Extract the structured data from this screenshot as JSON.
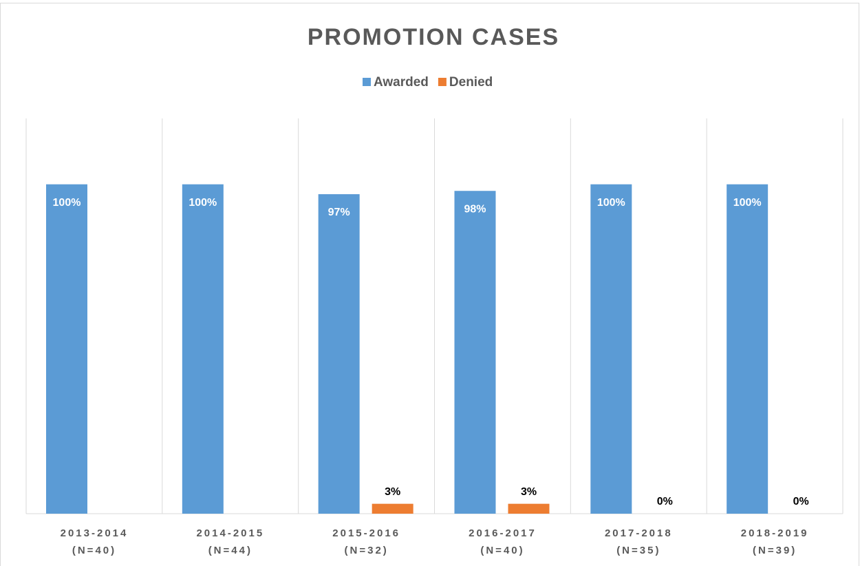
{
  "chart_data": {
    "type": "bar",
    "title": "PROMOTION CASES",
    "categories": [
      "2013-2014\n(N=40)",
      "2014-2015\n(N=44)",
      "2015-2016\n(N=32)",
      "2016-2017\n(N=40)",
      "2017-2018\n(N=35)",
      "2018-2019\n(N=39)"
    ],
    "series": [
      {
        "name": "Awarded",
        "color": "#5b9bd5",
        "values": [
          100,
          100,
          97,
          98,
          100,
          100
        ],
        "value_labels": [
          "100%",
          "100%",
          "97%",
          "98%",
          "100%",
          "100%"
        ]
      },
      {
        "name": "Denied",
        "color": "#ed7d31",
        "values": [
          null,
          null,
          3,
          3,
          0,
          0
        ],
        "value_labels": [
          null,
          null,
          "3%",
          "3%",
          "0%",
          "0%"
        ]
      }
    ],
    "ylim": [
      0,
      120
    ],
    "legend": "top",
    "grid": true
  }
}
